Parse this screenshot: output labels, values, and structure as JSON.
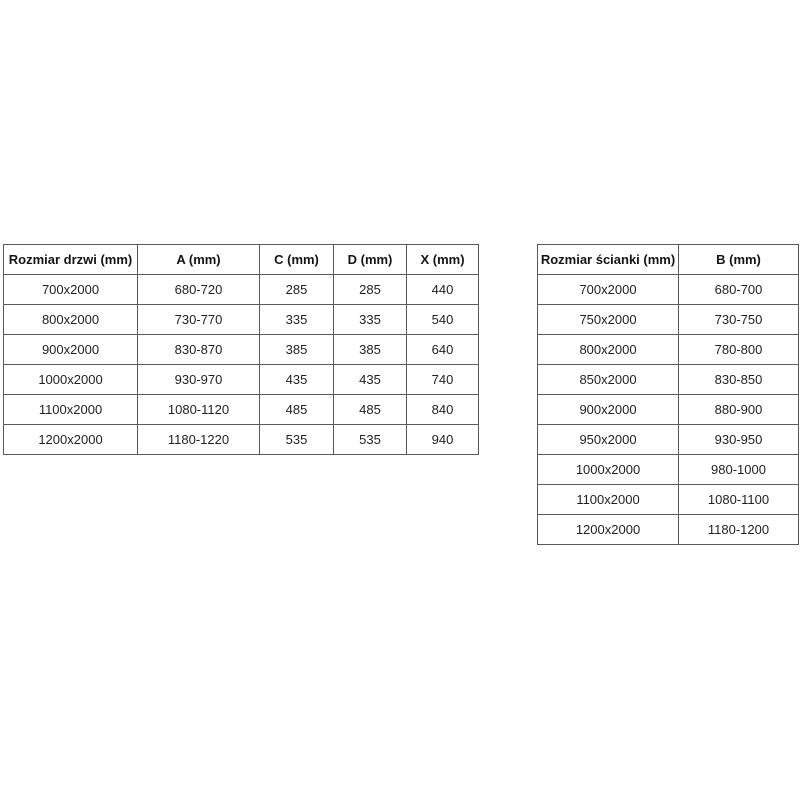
{
  "page": {
    "background_color": "#ffffff",
    "border_color": "#595959",
    "text_color": "#1a1a1a"
  },
  "door_table": {
    "headers": [
      "Rozmiar drzwi (mm)",
      "A (mm)",
      "C (mm)",
      "D (mm)",
      "X (mm)"
    ],
    "rows": [
      [
        "700x2000",
        "680-720",
        "285",
        "285",
        "440"
      ],
      [
        "800x2000",
        "730-770",
        "335",
        "335",
        "540"
      ],
      [
        "900x2000",
        "830-870",
        "385",
        "385",
        "640"
      ],
      [
        "1000x2000",
        "930-970",
        "435",
        "435",
        "740"
      ],
      [
        "1100x2000",
        "1080-1120",
        "485",
        "485",
        "840"
      ],
      [
        "1200x2000",
        "1180-1220",
        "535",
        "535",
        "940"
      ]
    ]
  },
  "panel_table": {
    "headers": [
      "Rozmiar ścianki (mm)",
      "B (mm)"
    ],
    "rows": [
      [
        "700x2000",
        "680-700"
      ],
      [
        "750x2000",
        "730-750"
      ],
      [
        "800x2000",
        "780-800"
      ],
      [
        "850x2000",
        "830-850"
      ],
      [
        "900x2000",
        "880-900"
      ],
      [
        "950x2000",
        "930-950"
      ],
      [
        "1000x2000",
        "980-1000"
      ],
      [
        "1100x2000",
        "1080-1100"
      ],
      [
        "1200x2000",
        "1180-1200"
      ]
    ]
  }
}
